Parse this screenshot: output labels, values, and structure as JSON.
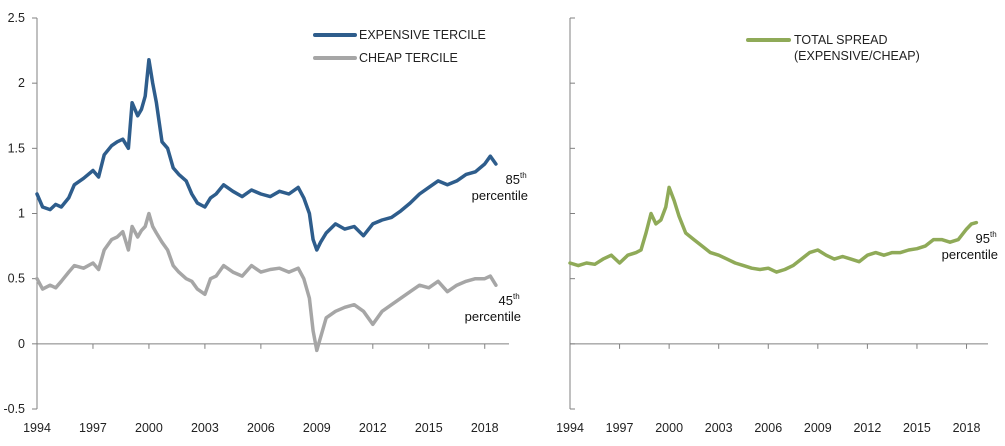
{
  "chart_data": [
    {
      "type": "line",
      "ylim": [
        -0.5,
        2.5
      ],
      "yticks": [
        "-0.5",
        "0",
        "0.5",
        "1",
        "1.5",
        "2",
        "2.5"
      ],
      "xlim": [
        1994,
        2019.3
      ],
      "xticks": [
        "1994",
        "1997",
        "2000",
        "2003",
        "2006",
        "2009",
        "2012",
        "2015",
        "2018"
      ],
      "grid": false,
      "legend_position": "top-right",
      "series": [
        {
          "name": "EXPENSIVE TERCILE",
          "color": "#2e5d8c",
          "x": [
            1994,
            1994.3,
            1994.7,
            1995,
            1995.3,
            1995.7,
            1996,
            1996.5,
            1997,
            1997.3,
            1997.6,
            1998,
            1998.3,
            1998.6,
            1998.9,
            1999.1,
            1999.4,
            1999.6,
            1999.8,
            2000.0,
            2000.2,
            2000.4,
            2000.7,
            2001,
            2001.3,
            2001.6,
            2002,
            2002.3,
            2002.6,
            2003,
            2003.3,
            2003.6,
            2004,
            2004.5,
            2005,
            2005.5,
            2006,
            2006.5,
            2007,
            2007.5,
            2008,
            2008.3,
            2008.6,
            2008.8,
            2009.0,
            2009.2,
            2009.5,
            2010,
            2010.5,
            2011,
            2011.5,
            2012,
            2012.5,
            2013,
            2013.5,
            2014,
            2014.5,
            2015,
            2015.5,
            2016,
            2016.5,
            2017,
            2017.5,
            2018,
            2018.3,
            2018.6
          ],
          "y": [
            1.15,
            1.05,
            1.03,
            1.07,
            1.05,
            1.12,
            1.22,
            1.27,
            1.33,
            1.28,
            1.45,
            1.52,
            1.55,
            1.57,
            1.5,
            1.85,
            1.75,
            1.8,
            1.9,
            2.18,
            2.0,
            1.85,
            1.55,
            1.5,
            1.35,
            1.3,
            1.25,
            1.15,
            1.08,
            1.05,
            1.12,
            1.15,
            1.22,
            1.17,
            1.13,
            1.18,
            1.15,
            1.13,
            1.17,
            1.15,
            1.2,
            1.12,
            1.0,
            0.8,
            0.72,
            0.78,
            0.85,
            0.92,
            0.88,
            0.9,
            0.83,
            0.92,
            0.95,
            0.97,
            1.02,
            1.08,
            1.15,
            1.2,
            1.25,
            1.22,
            1.25,
            1.3,
            1.32,
            1.38,
            1.44,
            1.38
          ]
        },
        {
          "name": "CHEAP TERCILE",
          "color": "#a6a6a6",
          "x": [
            1994,
            1994.3,
            1994.7,
            1995,
            1995.3,
            1995.7,
            1996,
            1996.5,
            1997,
            1997.3,
            1997.6,
            1998,
            1998.3,
            1998.6,
            1998.9,
            1999.1,
            1999.4,
            1999.6,
            1999.8,
            2000.0,
            2000.2,
            2000.4,
            2000.7,
            2001,
            2001.3,
            2001.6,
            2002,
            2002.3,
            2002.6,
            2003,
            2003.3,
            2003.6,
            2004,
            2004.5,
            2005,
            2005.5,
            2006,
            2006.5,
            2007,
            2007.5,
            2008,
            2008.3,
            2008.6,
            2008.8,
            2009.0,
            2009.2,
            2009.5,
            2010,
            2010.5,
            2011,
            2011.5,
            2012,
            2012.5,
            2013,
            2013.5,
            2014,
            2014.5,
            2015,
            2015.5,
            2016,
            2016.5,
            2017,
            2017.5,
            2018,
            2018.3,
            2018.6
          ],
          "y": [
            0.5,
            0.42,
            0.45,
            0.43,
            0.48,
            0.55,
            0.6,
            0.58,
            0.62,
            0.57,
            0.72,
            0.8,
            0.82,
            0.86,
            0.72,
            0.9,
            0.82,
            0.87,
            0.9,
            1.0,
            0.9,
            0.85,
            0.78,
            0.72,
            0.6,
            0.55,
            0.5,
            0.48,
            0.42,
            0.38,
            0.5,
            0.52,
            0.6,
            0.55,
            0.52,
            0.6,
            0.55,
            0.57,
            0.58,
            0.55,
            0.58,
            0.5,
            0.35,
            0.1,
            -0.05,
            0.05,
            0.2,
            0.25,
            0.28,
            0.3,
            0.25,
            0.15,
            0.25,
            0.3,
            0.35,
            0.4,
            0.45,
            0.43,
            0.48,
            0.4,
            0.45,
            0.48,
            0.5,
            0.5,
            0.52,
            0.45
          ]
        }
      ],
      "annotations": [
        {
          "value": "85",
          "sup": "th",
          "text": "percentile"
        },
        {
          "value": "45",
          "sup": "th",
          "text": "percentile"
        }
      ]
    },
    {
      "type": "line",
      "ylim": [
        -0.5,
        2.5
      ],
      "xlim": [
        1994,
        2019.3
      ],
      "xticks": [
        "1994",
        "1997",
        "2000",
        "2003",
        "2006",
        "2009",
        "2012",
        "2015",
        "2018"
      ],
      "grid": false,
      "legend_position": "top-right",
      "series": [
        {
          "name": "TOTAL SPREAD\n(EXPENSIVE/CHEAP)",
          "name_lines": [
            "TOTAL SPREAD",
            "(EXPENSIVE/CHEAP)"
          ],
          "color": "#8faa58",
          "x": [
            1994,
            1994.5,
            1995,
            1995.5,
            1996,
            1996.5,
            1997,
            1997.5,
            1998,
            1998.3,
            1998.6,
            1998.9,
            1999.2,
            1999.5,
            1999.8,
            2000.0,
            2000.3,
            2000.6,
            2001,
            2001.5,
            2002,
            2002.5,
            2003,
            2003.5,
            2004,
            2004.5,
            2005,
            2005.5,
            2006,
            2006.5,
            2007,
            2007.5,
            2008,
            2008.5,
            2009,
            2009.5,
            2010,
            2010.5,
            2011,
            2011.5,
            2012,
            2012.5,
            2013,
            2013.5,
            2014,
            2014.5,
            2015,
            2015.5,
            2016,
            2016.5,
            2017,
            2017.5,
            2018,
            2018.3,
            2018.6
          ],
          "y": [
            0.62,
            0.6,
            0.62,
            0.61,
            0.65,
            0.68,
            0.62,
            0.68,
            0.7,
            0.72,
            0.85,
            1.0,
            0.92,
            0.95,
            1.05,
            1.2,
            1.1,
            0.98,
            0.85,
            0.8,
            0.75,
            0.7,
            0.68,
            0.65,
            0.62,
            0.6,
            0.58,
            0.57,
            0.58,
            0.55,
            0.57,
            0.6,
            0.65,
            0.7,
            0.72,
            0.68,
            0.65,
            0.67,
            0.65,
            0.63,
            0.68,
            0.7,
            0.68,
            0.7,
            0.7,
            0.72,
            0.73,
            0.75,
            0.8,
            0.8,
            0.78,
            0.8,
            0.88,
            0.92,
            0.93
          ]
        }
      ],
      "annotations": [
        {
          "value": "95",
          "sup": "th",
          "text": "percentile"
        }
      ]
    }
  ]
}
